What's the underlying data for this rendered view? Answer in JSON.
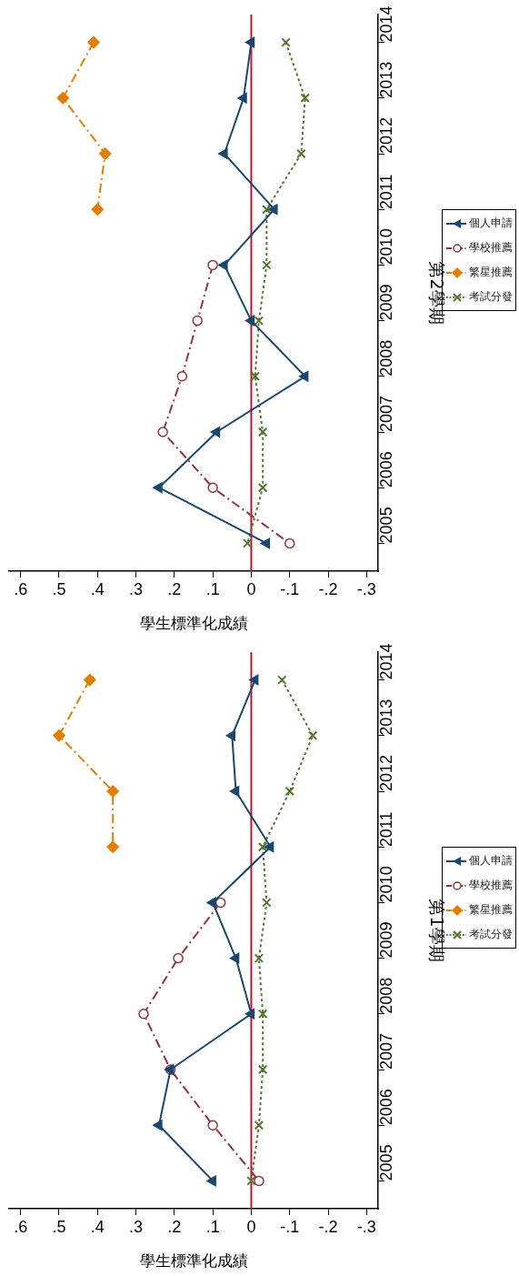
{
  "chart_data": [
    {
      "type": "line",
      "orientation": "horizontal",
      "ylabel": "第2學期",
      "xlabel": "學生標準化成績",
      "categories": [
        "2014",
        "2013",
        "2012",
        "2011",
        "2010",
        "2009",
        "2008",
        "2007",
        "2006",
        "2005"
      ],
      "xlim": [
        0.63,
        -0.33
      ],
      "xticks": [
        {
          "value": 0.6,
          "label": ".6"
        },
        {
          "value": 0.5,
          "label": ".5"
        },
        {
          "value": 0.4,
          "label": ".4"
        },
        {
          "value": 0.3,
          "label": ".3"
        },
        {
          "value": 0.2,
          "label": ".2"
        },
        {
          "value": 0.1,
          "label": ".1"
        },
        0,
        {
          "value": -0.1,
          "label": "-.1"
        },
        {
          "value": -0.2,
          "label": "-.2"
        },
        {
          "value": -0.3,
          "label": "-.3"
        }
      ],
      "legend": "right",
      "ref_lines": [
        {
          "axis": "x",
          "value": 0,
          "color": "#c8102e"
        }
      ],
      "series": [
        {
          "name": "個人申請",
          "color": "#1a476f",
          "marker": "triangle",
          "line_style": "solid",
          "values": [
            0.0,
            0.02,
            0.07,
            -0.06,
            0.07,
            0.0,
            -0.14,
            0.09,
            0.24,
            -0.04
          ]
        },
        {
          "name": "學校推薦",
          "color": "#90353b",
          "marker": "circle",
          "line_style": "dashed",
          "values": [
            null,
            null,
            null,
            null,
            0.1,
            0.14,
            0.18,
            0.23,
            0.1,
            -0.1
          ]
        },
        {
          "name": "繁星推薦",
          "color": "#e37e00",
          "marker": "diamond",
          "line_style": "dashed",
          "values": [
            0.41,
            0.49,
            0.38,
            0.4,
            null,
            null,
            null,
            null,
            null,
            null
          ]
        },
        {
          "name": "考試分發",
          "color": "#55752f",
          "marker": "cross",
          "line_style": "dotted",
          "values": [
            -0.09,
            -0.14,
            -0.13,
            -0.04,
            -0.04,
            -0.02,
            -0.01,
            -0.03,
            -0.03,
            0.01
          ]
        }
      ]
    },
    {
      "type": "line",
      "orientation": "horizontal",
      "ylabel": "第1學期",
      "xlabel": "學生標準化成績",
      "categories": [
        "2014",
        "2013",
        "2012",
        "2011",
        "2010",
        "2009",
        "2008",
        "2007",
        "2006",
        "2005"
      ],
      "xlim": [
        0.63,
        -0.33
      ],
      "xticks": [
        {
          "value": 0.6,
          "label": ".6"
        },
        {
          "value": 0.5,
          "label": ".5"
        },
        {
          "value": 0.4,
          "label": ".4"
        },
        {
          "value": 0.3,
          "label": ".3"
        },
        {
          "value": 0.2,
          "label": ".2"
        },
        {
          "value": 0.1,
          "label": ".1"
        },
        0,
        {
          "value": -0.1,
          "label": "-.1"
        },
        {
          "value": -0.2,
          "label": "-.2"
        },
        {
          "value": -0.3,
          "label": "-.3"
        }
      ],
      "legend": "right",
      "ref_lines": [
        {
          "axis": "x",
          "value": 0,
          "color": "#c8102e"
        }
      ],
      "series": [
        {
          "name": "個人申請",
          "color": "#1a476f",
          "marker": "triangle",
          "line_style": "solid",
          "values": [
            -0.01,
            0.05,
            0.04,
            -0.05,
            0.1,
            0.04,
            0.0,
            0.21,
            0.24,
            0.1
          ]
        },
        {
          "name": "學校推薦",
          "color": "#90353b",
          "marker": "circle",
          "line_style": "dashed",
          "values": [
            null,
            null,
            null,
            null,
            0.08,
            0.19,
            0.28,
            0.21,
            0.1,
            -0.02
          ]
        },
        {
          "name": "繁星推薦",
          "color": "#e37e00",
          "marker": "diamond",
          "line_style": "dashed",
          "values": [
            0.42,
            0.5,
            0.36,
            0.36,
            null,
            null,
            null,
            null,
            null,
            null
          ]
        },
        {
          "name": "考試分發",
          "color": "#55752f",
          "marker": "cross",
          "line_style": "dotted",
          "values": [
            -0.08,
            -0.16,
            -0.1,
            -0.03,
            -0.04,
            -0.02,
            -0.03,
            -0.03,
            -0.02,
            0.0
          ]
        }
      ]
    }
  ]
}
